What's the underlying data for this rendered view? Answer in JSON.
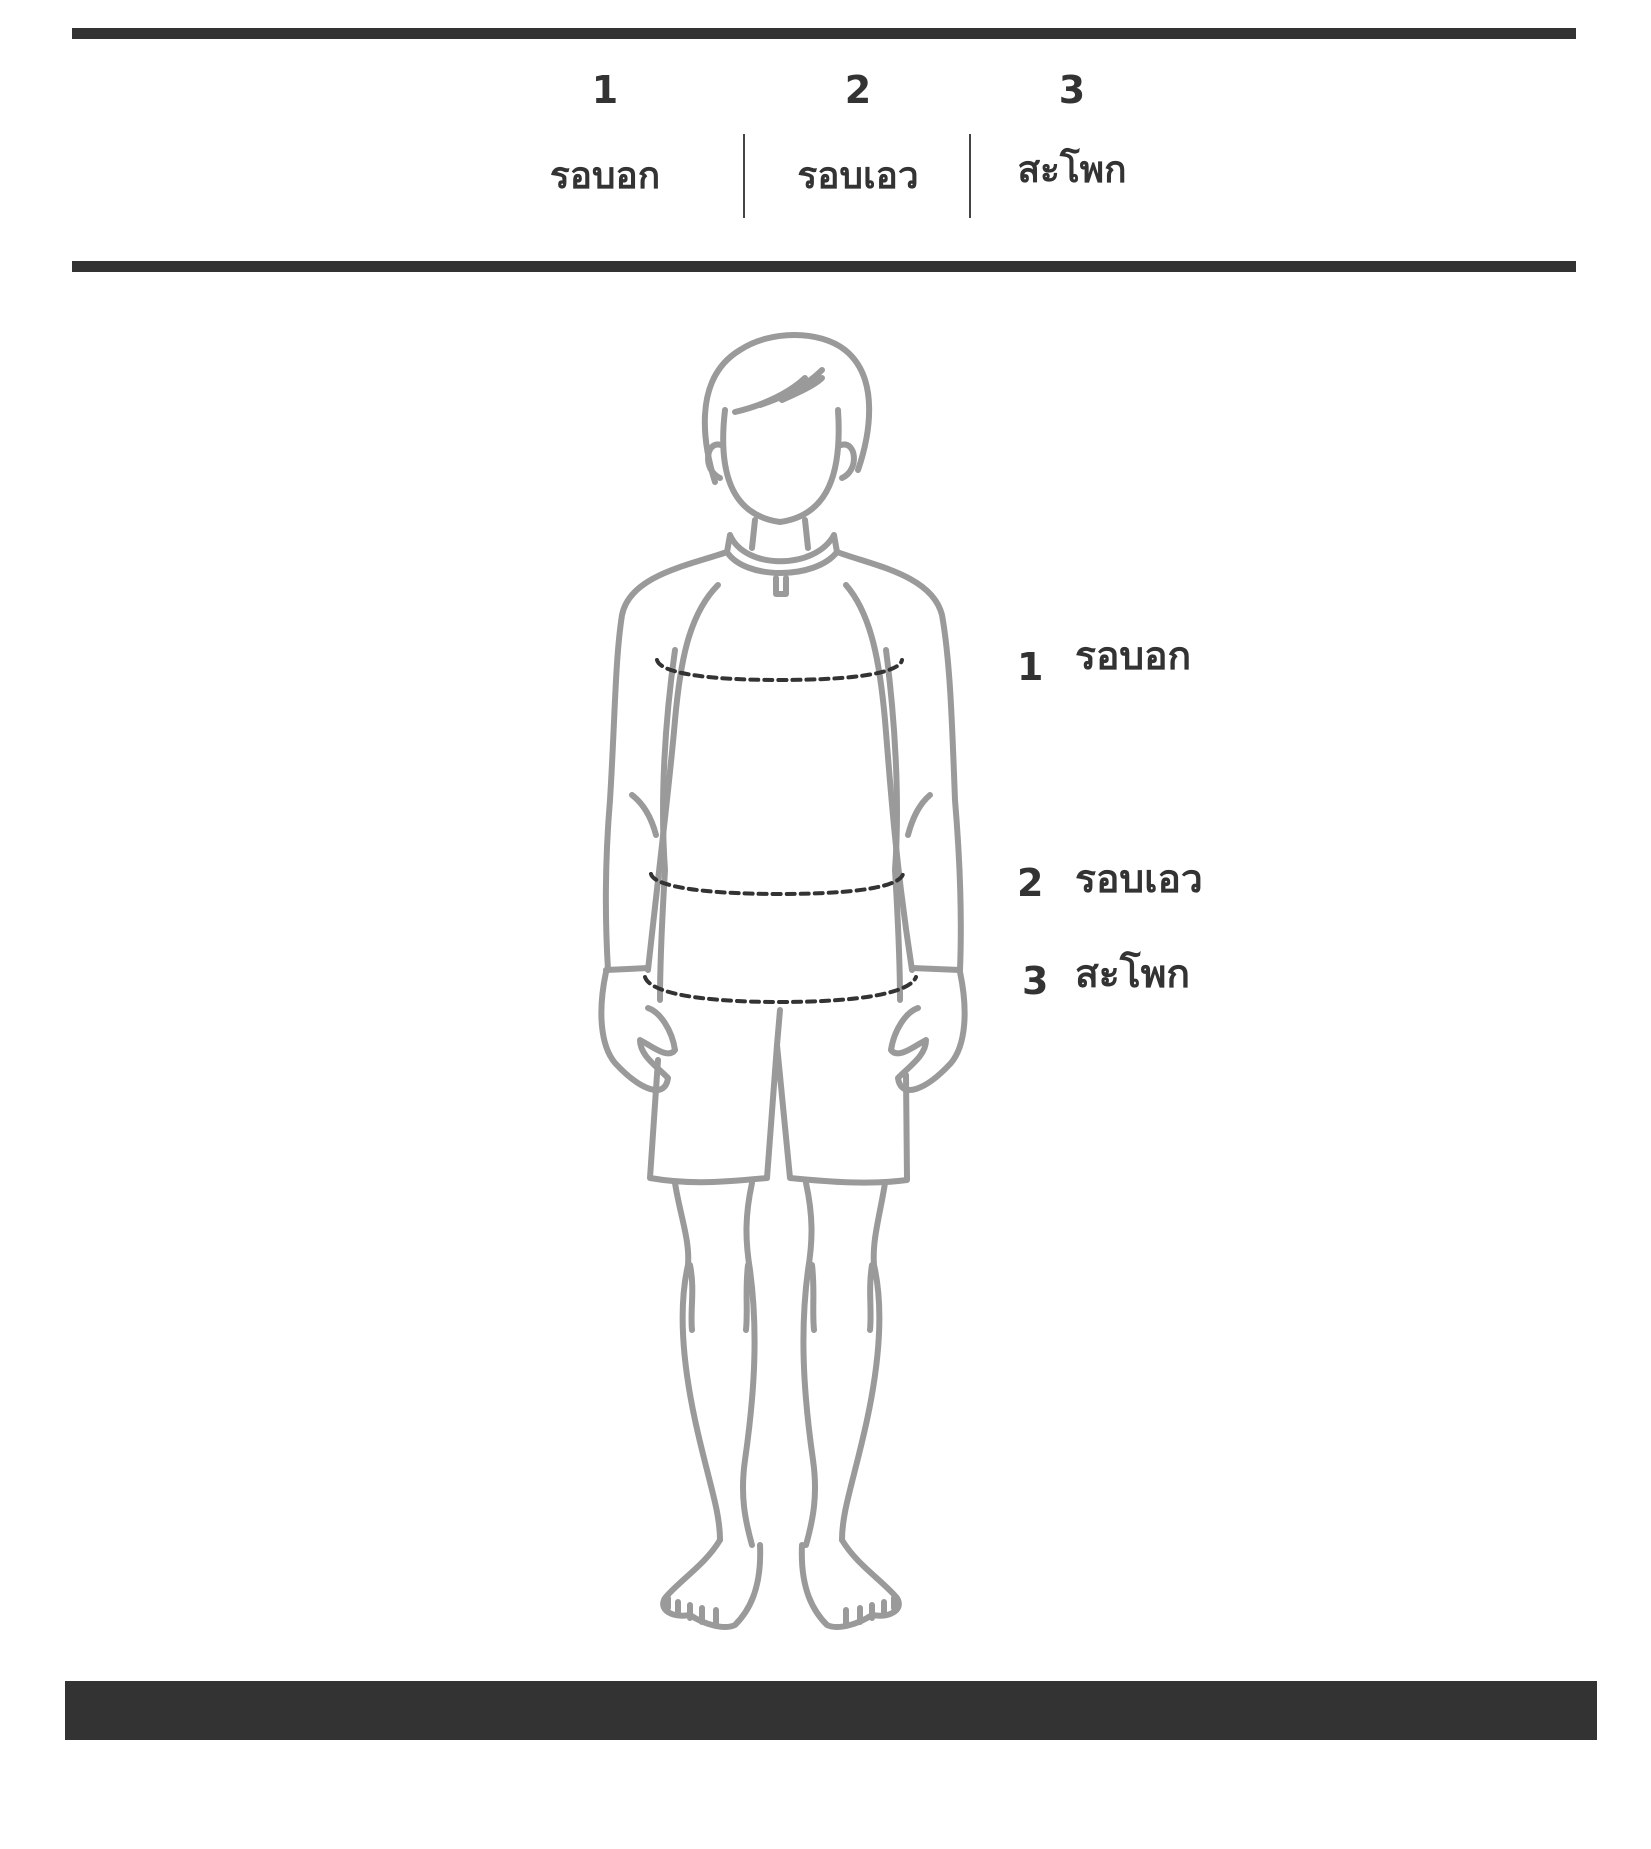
{
  "header": {
    "columns": [
      {
        "number": "1",
        "label": "รอบอก"
      },
      {
        "number": "2",
        "label": "รอบเอว"
      },
      {
        "number": "3",
        "label": "สะโพก"
      }
    ]
  },
  "figure": {
    "callouts": [
      {
        "number": "1",
        "label": "รอบอก"
      },
      {
        "number": "2",
        "label": "รอบเอว"
      },
      {
        "number": "3",
        "label": "สะโพก"
      }
    ]
  },
  "colors": {
    "rule": "#333333",
    "text": "#333333",
    "figure_stroke": "#9a9a9a",
    "measure_line": "#333333"
  }
}
